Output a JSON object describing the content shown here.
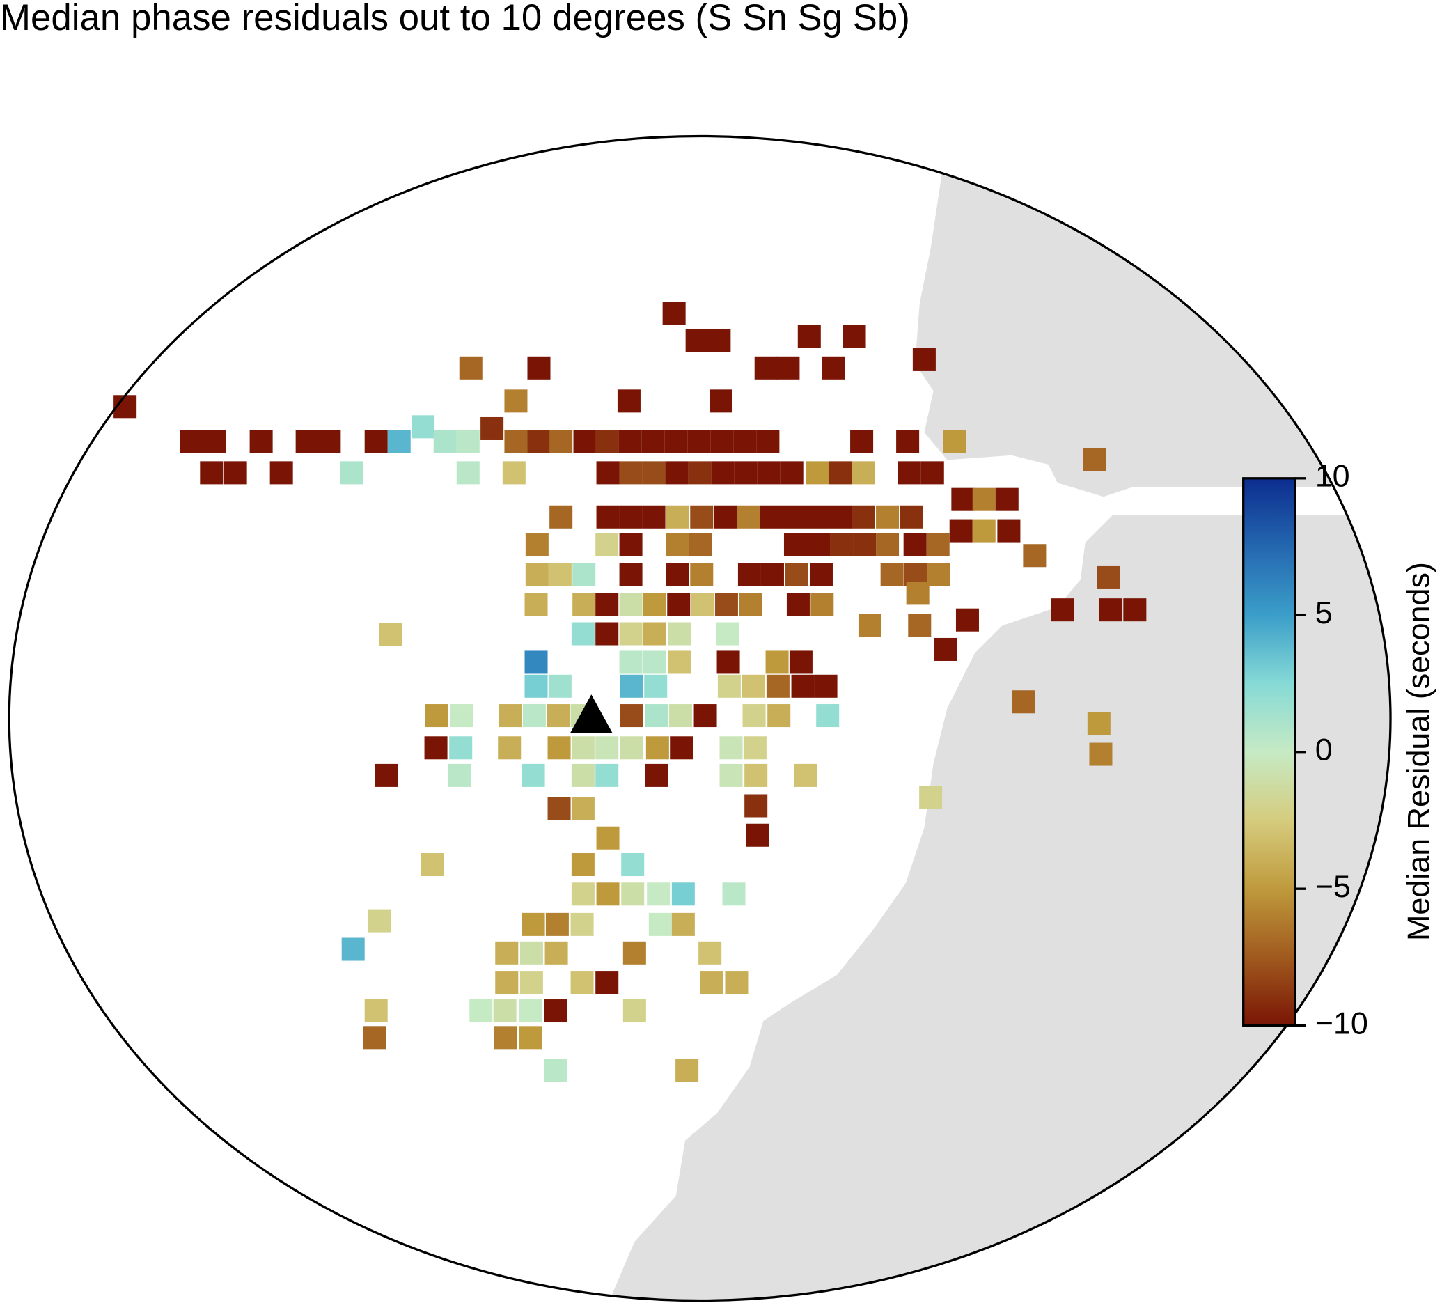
{
  "chart_data": {
    "type": "map",
    "title": "Median phase residuals out to 10 degrees (S Sn Sg Sb)",
    "xlim": [
      -751,
      751
    ],
    "ylim": [
      -633,
      633
    ],
    "station": {
      "x": -118,
      "y": 4
    },
    "x": [
      -28,
      -3,
      21,
      119,
      168,
      -249,
      -175,
      72,
      96,
      145,
      244,
      -200,
      -77,
      23,
      -625,
      -301,
      -226,
      -553,
      -528,
      -477,
      -427,
      -403,
      -352,
      -327,
      -277,
      -252,
      -200,
      -175,
      -151,
      -125,
      -101,
      -76,
      -51,
      -26,
      -1,
      24,
      49,
      74,
      176,
      226,
      277,
      429,
      -531,
      -505,
      -455,
      -379,
      -252,
      -202,
      -100,
      -75,
      -50,
      -25,
      0,
      25,
      50,
      75,
      100,
      128,
      153,
      178,
      228,
      253,
      286,
      309,
      334,
      -151,
      -100,
      -75,
      -50,
      -24,
      2,
      28,
      53,
      78,
      103,
      128,
      153,
      178,
      204,
      230,
      284,
      309,
      336,
      -177,
      -101,
      -75,
      -24,
      1,
      104,
      129,
      154,
      179,
      204,
      234,
      259,
      364,
      -177,
      -152,
      -126,
      -75,
      -24,
      2,
      54,
      79,
      105,
      132,
      209,
      235,
      260,
      444,
      237,
      -178,
      -126,
      -101,
      -75,
      -49,
      -23,
      3,
      29,
      55,
      107,
      133,
      394,
      447,
      473,
      291,
      185,
      239,
      -127,
      -101,
      -75,
      -49,
      -22,
      30,
      267,
      -336,
      -178,
      -75,
      -49,
      -22,
      31,
      84,
      110,
      -178,
      -152,
      -74,
      -48,
      32,
      58,
      85,
      112,
      137,
      352,
      -286,
      -259,
      -206,
      -180,
      -154,
      -128,
      -74,
      -47,
      -21,
      6,
      59,
      86,
      139,
      434,
      -287,
      -260,
      -207,
      -153,
      -127,
      -101,
      -74,
      -46,
      -20,
      34,
      60,
      436,
      -341,
      -261,
      -181,
      -127,
      -101,
      -47,
      34,
      61,
      115,
      251,
      61,
      -153,
      -127,
      63,
      -100,
      -291,
      -127,
      -73,
      -127,
      -100,
      -73,
      -45,
      -18,
      37,
      -348,
      -181,
      -155,
      -128,
      -43,
      -18,
      -377,
      -210,
      -183,
      -156,
      -71,
      11,
      -210,
      -183,
      -128,
      -101,
      13,
      40,
      -352,
      -238,
      -212,
      -184,
      -157,
      -71,
      -354,
      -211,
      -184,
      -157,
      -14
    ],
    "y": [
      440,
      411,
      411,
      415,
      415,
      381,
      381,
      381,
      381,
      381,
      390,
      345,
      345,
      345,
      339,
      317,
      315,
      301,
      301,
      301,
      301,
      301,
      301,
      301,
      301,
      301,
      301,
      301,
      301,
      301,
      301,
      301,
      301,
      301,
      301,
      301,
      301,
      301,
      301,
      301,
      301,
      281,
      267,
      267,
      267,
      267,
      267,
      267,
      267,
      267,
      267,
      267,
      267,
      267,
      267,
      267,
      267,
      267,
      267,
      267,
      267,
      267,
      238,
      238,
      238,
      219,
      219,
      219,
      219,
      219,
      219,
      219,
      219,
      219,
      219,
      219,
      219,
      219,
      219,
      219,
      204,
      204,
      204,
      189,
      189,
      189,
      189,
      189,
      189,
      189,
      189,
      189,
      189,
      189,
      189,
      177,
      156,
      156,
      156,
      156,
      156,
      156,
      156,
      156,
      156,
      156,
      156,
      156,
      156,
      153,
      136,
      124,
      124,
      124,
      124,
      124,
      124,
      124,
      124,
      124,
      124,
      124,
      118,
      118,
      118,
      107,
      101,
      101,
      92,
      92,
      92,
      92,
      92,
      92,
      75,
      91,
      61,
      61,
      61,
      61,
      61,
      61,
      61,
      35,
      35,
      35,
      35,
      35,
      35,
      35,
      35,
      35,
      18,
      3,
      3,
      3,
      3,
      3,
      3,
      3,
      3,
      3,
      3,
      3,
      3,
      3,
      -6,
      -32,
      -32,
      -32,
      -32,
      -32,
      -32,
      -32,
      -32,
      -32,
      -32,
      -32,
      -39,
      -62,
      -62,
      -62,
      -62,
      -62,
      -62,
      -62,
      -62,
      -62,
      -86,
      -95,
      -98,
      -98,
      -127,
      -130,
      -159,
      -159,
      -159,
      -191,
      -191,
      -191,
      -191,
      -191,
      -191,
      -220,
      -224,
      -224,
      -224,
      -224,
      -224,
      -251,
      -255,
      -255,
      -255,
      -255,
      -255,
      -287,
      -287,
      -287,
      -287,
      -287,
      -287,
      -318,
      -318,
      -318,
      -318,
      -318,
      -318,
      -347,
      -347,
      -347,
      -383,
      -383
    ],
    "values": [
      -10,
      -10,
      -10,
      -10,
      -10,
      -7,
      -10,
      -10,
      -10,
      -10,
      -10,
      -6,
      -10,
      -10,
      -10,
      2,
      -9,
      -10,
      -10,
      -10,
      -10,
      -10,
      -10,
      4,
      1,
      0.5,
      -7,
      -9,
      -7,
      -10,
      -9,
      -10,
      -10,
      -10,
      -10,
      -10,
      -10,
      -10,
      -10,
      -10,
      -5,
      -7,
      -10,
      -10,
      -10,
      1,
      0.5,
      -3,
      -10,
      -8,
      -8,
      -10,
      -9,
      -10,
      -10,
      -10,
      -10,
      -5,
      -9,
      -4,
      -10,
      -10,
      -10,
      -6,
      -10,
      -7,
      -10,
      -10,
      -10,
      -4,
      -8,
      -10,
      -6,
      -10,
      -10,
      -10,
      -10,
      -9,
      -6,
      -9,
      -10,
      -5,
      -10,
      -6,
      -2,
      -10,
      -6,
      -7,
      -10,
      -10,
      -9,
      -9,
      -7,
      -10,
      -7,
      -7,
      -4,
      -3,
      1,
      -10,
      -10,
      -6,
      -10,
      -10,
      -8,
      -10,
      -7,
      -8,
      -6,
      -8,
      -6,
      -4,
      -4,
      -10,
      -1,
      -5,
      -10,
      -3,
      -8,
      -6,
      -10,
      -6,
      -10,
      -10,
      -10,
      -10,
      -6,
      -7,
      2,
      -10,
      -2,
      -4,
      -1,
      0,
      -10,
      -3,
      6,
      0.5,
      0.5,
      -3,
      -10,
      -5,
      -10,
      3,
      1.5,
      4,
      2,
      -2,
      -3,
      -7,
      -10,
      -10,
      -7,
      -5,
      0,
      -4,
      0.5,
      -4,
      -1,
      -8,
      1,
      -1,
      -10,
      -2,
      -4,
      2,
      -5,
      -10,
      2,
      -4,
      -5,
      -1,
      -0.5,
      -1,
      -5,
      -10,
      -0.5,
      -2,
      -6,
      -10,
      0.5,
      2,
      -1,
      2,
      -10,
      -0.5,
      -3,
      -3,
      -2,
      -9,
      -8,
      -4,
      -10,
      -5,
      -3,
      -5,
      2,
      -2,
      -5,
      -1,
      0,
      3,
      0.5,
      -2,
      -5,
      -6,
      -2,
      0,
      -4,
      4,
      -4,
      -1,
      -4,
      -6,
      -3,
      -4,
      -2,
      -3,
      -10,
      -4,
      -4,
      -3,
      0,
      -1,
      0,
      -10,
      -2,
      -7,
      -6,
      -5,
      0.5,
      -4
    ],
    "colorbar": {
      "label": "Median Residual (seconds)",
      "lim": [
        -10,
        10
      ],
      "ticks": [
        {
          "value": -10,
          "label": "−10"
        },
        {
          "value": -5,
          "label": "−5"
        },
        0,
        5,
        10
      ],
      "colorscale": [
        {
          "value": -10,
          "color": "#7a1505"
        },
        {
          "value": -7.5,
          "color": "#a05a1e"
        },
        {
          "value": -5,
          "color": "#bf9a3c"
        },
        {
          "value": -2.5,
          "color": "#d5cc7e"
        },
        {
          "value": 0,
          "color": "#c6eac4"
        },
        {
          "value": 2.5,
          "color": "#86dad6"
        },
        {
          "value": 5,
          "color": "#3b9ec9"
        },
        {
          "value": 7.5,
          "color": "#2467b0"
        },
        {
          "value": 10,
          "color": "#0c2d8e"
        }
      ]
    }
  }
}
